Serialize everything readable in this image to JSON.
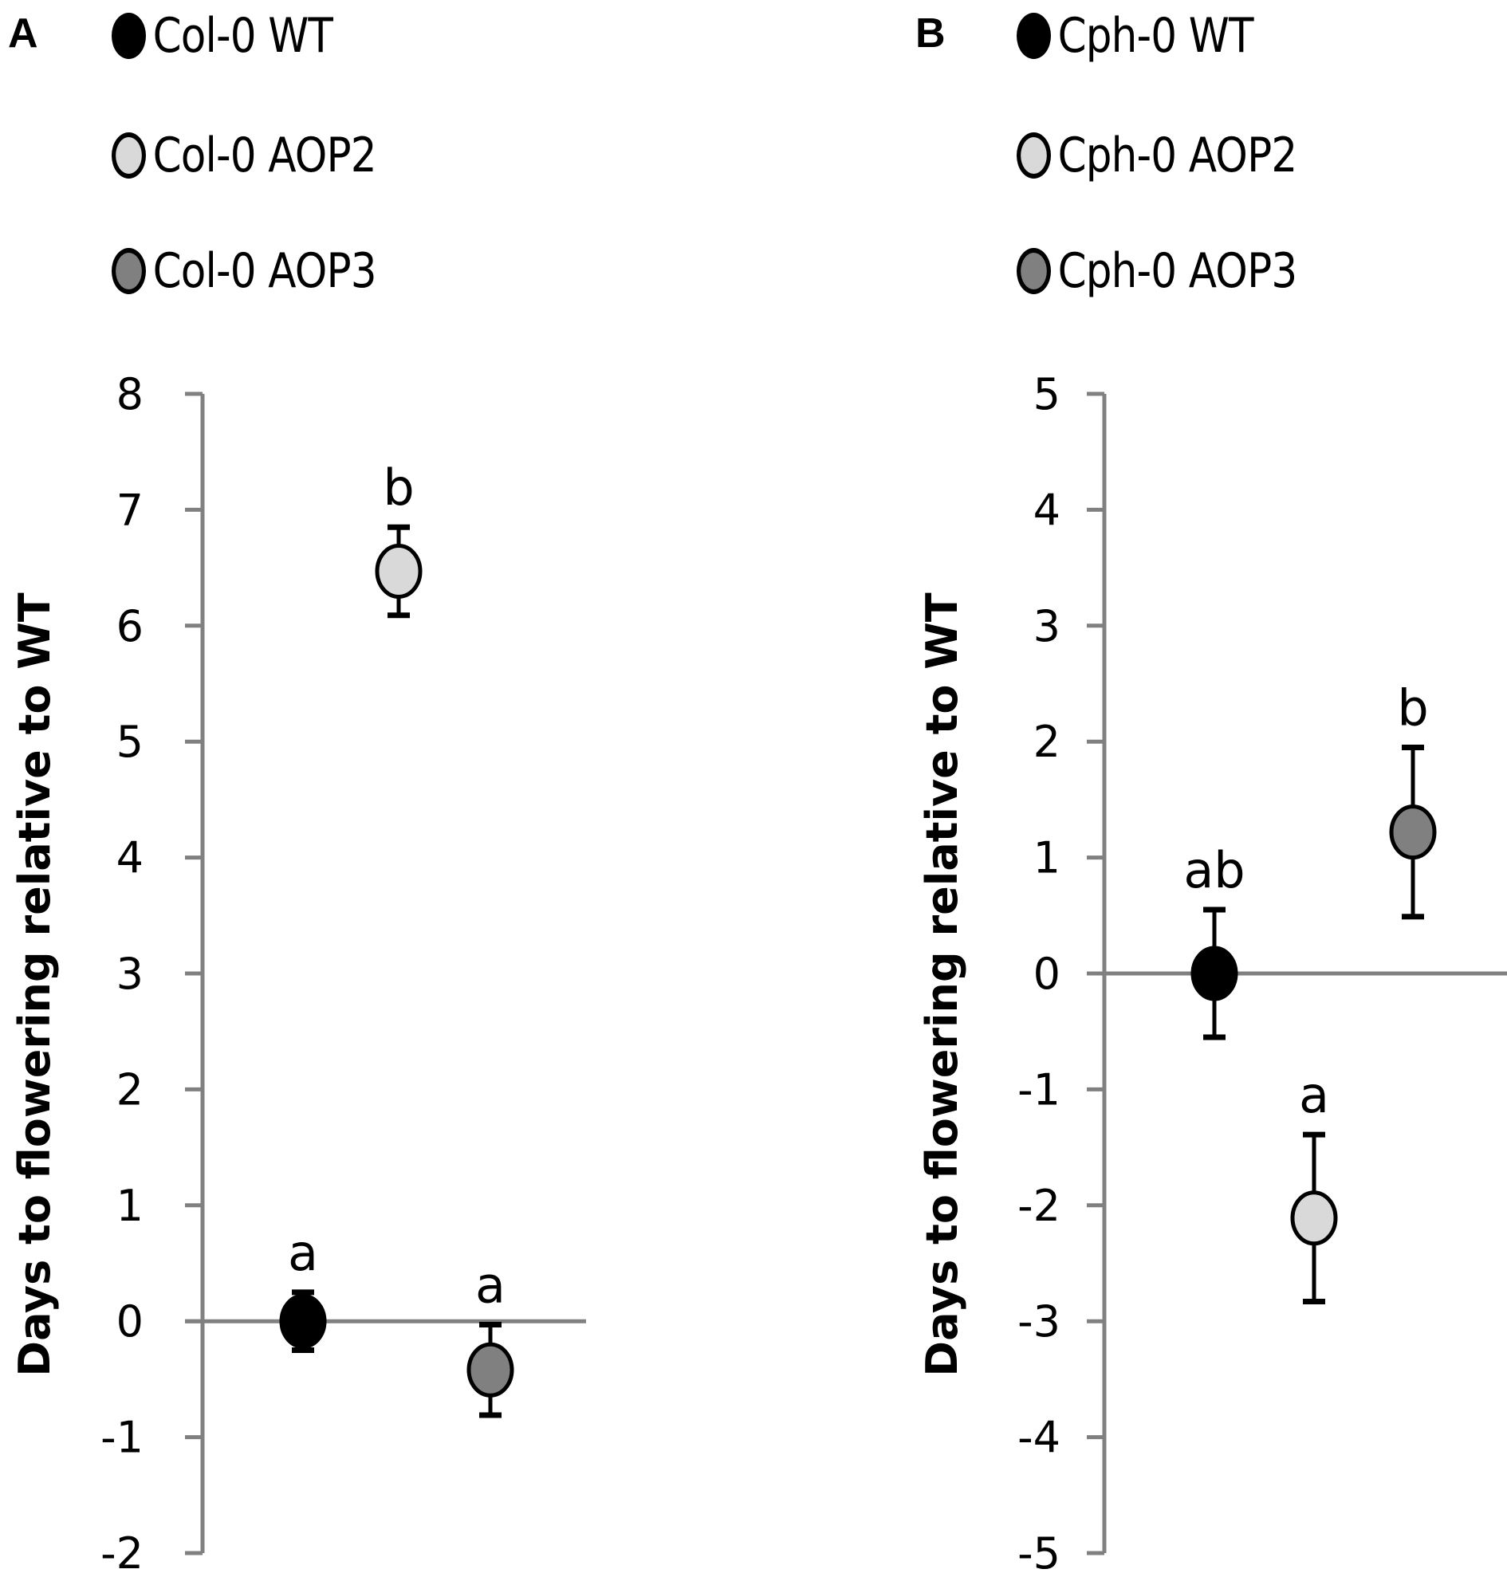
{
  "figure": {
    "panels": [
      {
        "letter": "A",
        "legend": [
          {
            "label": "Col-0 WT",
            "fill": "#000000"
          },
          {
            "label": "Col-0 AOP2",
            "fill": "#d9d9d9"
          },
          {
            "label": "Col-0 AOP3",
            "fill": "#808080"
          }
        ],
        "ylabel": "Days to flowering relative to WT",
        "yticks": [
          "8",
          "7",
          "6",
          "5",
          "4",
          "3",
          "2",
          "1",
          "0",
          "-1",
          "-2"
        ]
      },
      {
        "letter": "B",
        "legend": [
          {
            "label": "Cph-0 WT",
            "fill": "#000000"
          },
          {
            "label": "Cph-0 AOP2",
            "fill": "#d9d9d9"
          },
          {
            "label": "Cph-0 AOP3",
            "fill": "#808080"
          }
        ],
        "ylabel": "Days to flowering relative to WT",
        "yticks": [
          "5",
          "4",
          "3",
          "2",
          "1",
          "0",
          "-1",
          "-2",
          "-3",
          "-4",
          "-5"
        ]
      }
    ]
  },
  "colors": {
    "axis": "#808080",
    "wt_fill": "#000000",
    "aop2_fill": "#d9d9d9",
    "aop3_fill": "#808080",
    "marker_edge": "#000000"
  },
  "chart_data": [
    {
      "type": "scatter",
      "panel": "A",
      "title": "",
      "xlabel": "",
      "ylabel": "Days to flowering relative to WT",
      "ylim": [
        -2,
        8
      ],
      "ytick_step": 1,
      "grid": false,
      "legend_position": "top",
      "series": [
        {
          "name": "Col-0 WT",
          "x": 1,
          "y": 0.0,
          "error": 0.25,
          "significance": "a",
          "fill": "#000000"
        },
        {
          "name": "Col-0 AOP2",
          "x": 2,
          "y": 6.47,
          "error": 0.38,
          "significance": "b",
          "fill": "#d9d9d9"
        },
        {
          "name": "Col-0 AOP3",
          "x": 3,
          "y": -0.42,
          "error": 0.39,
          "significance": "a",
          "fill": "#808080"
        }
      ]
    },
    {
      "type": "scatter",
      "panel": "B",
      "title": "",
      "xlabel": "",
      "ylabel": "Days to flowering relative to WT",
      "ylim": [
        -5,
        5
      ],
      "ytick_step": 1,
      "grid": false,
      "legend_position": "top",
      "series": [
        {
          "name": "Cph-0 WT",
          "x": 1,
          "y": 0.0,
          "error": 0.55,
          "significance": "ab",
          "fill": "#000000"
        },
        {
          "name": "Cph-0 AOP2",
          "x": 2,
          "y": -2.11,
          "error": 0.72,
          "significance": "a",
          "fill": "#d9d9d9"
        },
        {
          "name": "Cph-0 AOP3",
          "x": 3,
          "y": 1.22,
          "error": 0.73,
          "significance": "b",
          "fill": "#808080"
        }
      ]
    }
  ]
}
